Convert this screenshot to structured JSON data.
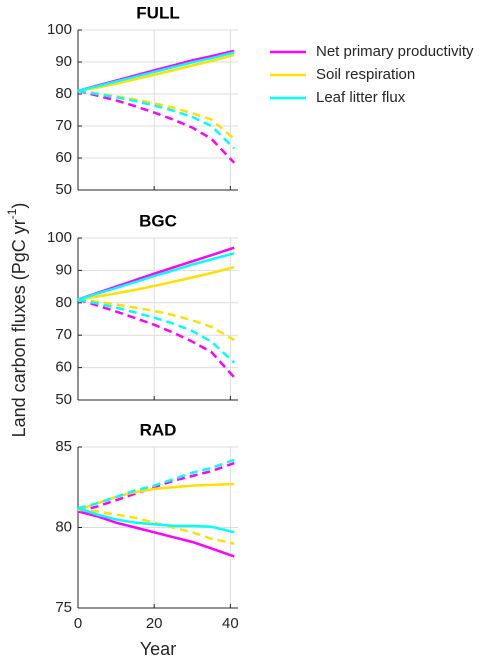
{
  "chart_data": [
    {
      "type": "line",
      "title": "FULL",
      "xlim": [
        0,
        42
      ],
      "xticks": [
        0,
        20,
        40
      ],
      "ylim": [
        50,
        100
      ],
      "yticks": [
        50,
        60,
        70,
        80,
        90,
        100
      ],
      "grid": true,
      "legend": "outside-right",
      "x": [
        0,
        5,
        10,
        15,
        20,
        25,
        30,
        35,
        41
      ],
      "series": [
        {
          "name": "Net primary productivity",
          "color": "#ff00ff",
          "values": [
            81,
            82.6,
            84.2,
            85.8,
            87.4,
            88.9,
            90.5,
            91.8,
            93.5
          ],
          "dashed_values": [
            81,
            79.5,
            78,
            76.2,
            74.2,
            72,
            69.5,
            66,
            58.5
          ]
        },
        {
          "name": "Soil respiration",
          "color": "#ffe000",
          "values": [
            81,
            82,
            83.2,
            84.6,
            86,
            87.4,
            88.9,
            90.3,
            92.2
          ],
          "dashed_values": [
            81,
            80.2,
            79.3,
            78.3,
            77.1,
            75.7,
            74,
            72,
            66
          ]
        },
        {
          "name": "Leaf litter flux",
          "color": "#00ffff",
          "values": [
            81,
            82.4,
            83.9,
            85.4,
            86.9,
            88.4,
            89.9,
            91.2,
            93
          ],
          "dashed_values": [
            81,
            80,
            79,
            77.8,
            76.4,
            74.8,
            72.8,
            70,
            63
          ]
        }
      ]
    },
    {
      "type": "line",
      "title": "BGC",
      "ylabel": [
        "Land carbon fluxes (PgC yr",
        "-1",
        ")"
      ],
      "xlim": [
        0,
        42
      ],
      "xticks": [
        0,
        20,
        40
      ],
      "ylim": [
        50,
        100
      ],
      "yticks": [
        50,
        60,
        70,
        80,
        90,
        100
      ],
      "grid": true,
      "x": [
        0,
        5,
        10,
        15,
        20,
        25,
        30,
        35,
        41
      ],
      "series": [
        {
          "color": "#ff00ff",
          "values": [
            81,
            83,
            85,
            87,
            89,
            90.9,
            92.8,
            94.7,
            97
          ],
          "dashed_values": [
            81,
            79.2,
            77.3,
            75.3,
            73.2,
            70.8,
            68,
            64.8,
            57
          ]
        },
        {
          "color": "#ffe000",
          "values": [
            81,
            81.9,
            82.9,
            84,
            85.2,
            86.5,
            87.8,
            89.2,
            91
          ],
          "dashed_values": [
            81,
            80.3,
            79.5,
            78.5,
            77.5,
            76.2,
            74.6,
            72.6,
            68.5
          ]
        },
        {
          "color": "#00ffff",
          "values": [
            81,
            82.8,
            84.6,
            86.4,
            88.3,
            90,
            91.8,
            93.4,
            95.3
          ],
          "dashed_values": [
            81,
            79.8,
            78.5,
            77,
            75.4,
            73.6,
            71.3,
            68,
            61.5
          ]
        }
      ]
    },
    {
      "type": "line",
      "title": "RAD",
      "xlabel": "Year",
      "xticklabels": true,
      "xlim": [
        0,
        42
      ],
      "xticks": [
        0,
        20,
        40
      ],
      "ylim": [
        75,
        85
      ],
      "yticks": [
        75,
        80,
        85
      ],
      "grid": true,
      "x": [
        0,
        5,
        10,
        15,
        20,
        25,
        30,
        35,
        41
      ],
      "series": [
        {
          "color": "#ff00ff",
          "values": [
            81,
            80.7,
            80.3,
            80,
            79.7,
            79.4,
            79.1,
            78.7,
            78.2
          ],
          "dashed_values": [
            81,
            81.3,
            81.7,
            82.1,
            82.5,
            82.9,
            83.2,
            83.5,
            84
          ]
        },
        {
          "color": "#ffe000",
          "values": [
            81.1,
            81.5,
            81.9,
            82.2,
            82.4,
            82.5,
            82.6,
            82.65,
            82.7
          ],
          "dashed_values": [
            81.1,
            81,
            80.8,
            80.6,
            80.3,
            80,
            79.7,
            79.3,
            79
          ]
        },
        {
          "color": "#00ffff",
          "values": [
            81.2,
            80.8,
            80.5,
            80.3,
            80.2,
            80.1,
            80.1,
            80.05,
            79.7
          ],
          "dashed_values": [
            81.2,
            81.5,
            81.9,
            82.3,
            82.6,
            83,
            83.4,
            83.7,
            84.2
          ]
        }
      ]
    }
  ]
}
